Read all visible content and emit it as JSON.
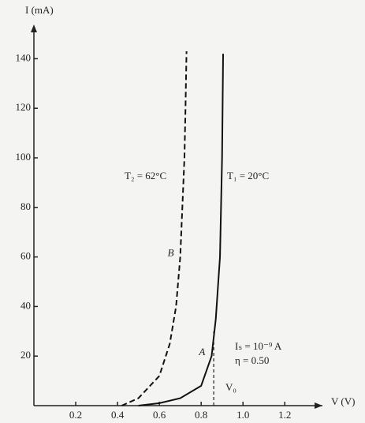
{
  "chart_data": {
    "type": "line",
    "y_label": "I (mA)",
    "x_label": "V (V)",
    "xlim": [
      0,
      1.38
    ],
    "ylim": [
      0,
      150
    ],
    "xticks": [
      0.2,
      0.4,
      0.6,
      0.8,
      {
        "value": 1,
        "label": "1.0"
      },
      1.2
    ],
    "yticks": [
      20,
      40,
      60,
      80,
      100,
      120,
      140
    ],
    "series": [
      {
        "name": "A",
        "color": "#111",
        "dash": false,
        "x": [
          0.5,
          0.6,
          0.7,
          0.8,
          0.85,
          0.87,
          0.89,
          0.9,
          0.905
        ],
        "values": [
          0,
          1,
          3,
          8,
          20,
          35,
          60,
          100,
          142
        ]
      },
      {
        "name": "B",
        "color": "#111",
        "dash": true,
        "x": [
          0.42,
          0.5,
          0.6,
          0.65,
          0.68,
          0.7,
          0.71,
          0.72,
          0.725,
          0.73
        ],
        "values": [
          0,
          3,
          12,
          25,
          40,
          60,
          80,
          100,
          120,
          143
        ]
      }
    ],
    "reference_x": 0.86,
    "annotations": [
      "T₂ = 62°C",
      "T₁ = 20°C",
      "Iₛ = 10⁻⁹ A",
      "η = 0.50",
      "V₀"
    ]
  }
}
